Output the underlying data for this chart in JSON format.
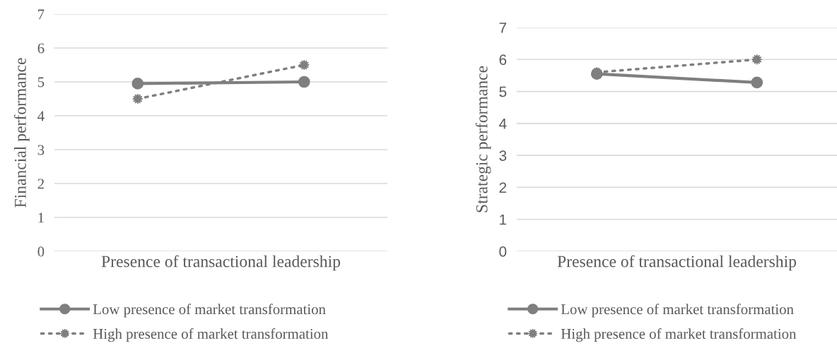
{
  "chart_data": [
    {
      "type": "line",
      "ylabel": "Financial performance",
      "xlabel": "Presence of transactional leadership",
      "categories": [
        null,
        null
      ],
      "ylim": [
        0,
        7
      ],
      "yticks": [
        0,
        1,
        2,
        3,
        4,
        5,
        6,
        7
      ],
      "grid": "y",
      "legend": "bottom",
      "tick_labels": "y",
      "series": [
        {
          "name": "Low presence of market transformation",
          "color": "#7f7f7f",
          "values": [
            4.95,
            5.0
          ],
          "marker": "circle",
          "line_style": "solid"
        },
        {
          "name": "High presence of market transformation",
          "color": "#7f7f7f",
          "values": [
            4.5,
            5.5
          ],
          "marker": "star",
          "line_style": "dotted"
        }
      ]
    },
    {
      "type": "line",
      "ylabel": "Strategic performance",
      "xlabel": "Presence of transactional leadership",
      "categories": [
        null,
        null
      ],
      "ylim": [
        0,
        7
      ],
      "yticks": [
        0,
        1,
        2,
        3,
        4,
        5,
        6,
        7
      ],
      "grid": "y",
      "legend": "bottom",
      "tick_labels": "y",
      "series": [
        {
          "name": "Low presence of market transformation",
          "color": "#7f7f7f",
          "values": [
            5.55,
            5.28
          ],
          "marker": "circle",
          "line_style": "solid"
        },
        {
          "name": "High presence of market transformation",
          "color": "#7f7f7f",
          "values": [
            5.6,
            6.0
          ],
          "marker": "star",
          "line_style": "dotted"
        }
      ]
    }
  ]
}
